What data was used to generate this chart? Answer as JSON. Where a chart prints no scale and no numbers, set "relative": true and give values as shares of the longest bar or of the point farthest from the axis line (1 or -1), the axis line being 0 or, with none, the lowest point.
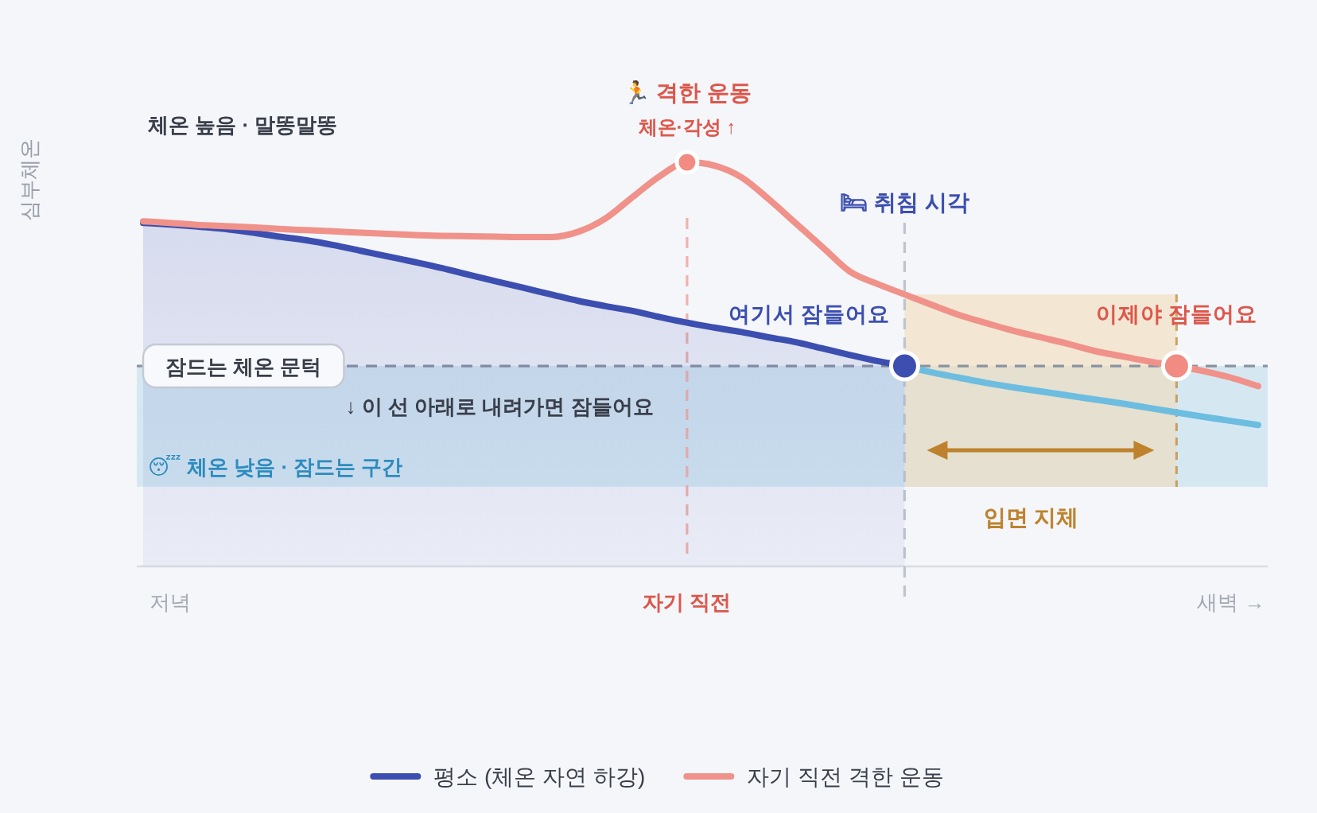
{
  "chart_data": {
    "type": "line",
    "relative": true,
    "ylabel": "심부체온",
    "categories": [
      null,
      "저녁",
      null,
      null,
      null,
      null,
      null,
      null,
      null,
      null,
      null,
      null,
      null,
      null,
      null,
      null,
      null,
      null,
      null,
      null,
      "자기 직전",
      null,
      null,
      null,
      null,
      null,
      null,
      null,
      null,
      null,
      null,
      null,
      null,
      null,
      null,
      null,
      null,
      null,
      null,
      null,
      "새벽 →",
      null
    ],
    "series": [
      {
        "name": "평소 (체온 자연 하강)",
        "type": "area",
        "color": "#3c4fb0",
        "values": [
          0.85,
          0.846,
          0.841,
          0.835,
          0.826,
          0.816,
          0.807,
          0.795,
          0.781,
          0.767,
          0.753,
          0.738,
          0.721,
          0.705,
          0.689,
          0.673,
          0.657,
          0.644,
          0.632,
          0.617,
          0.603,
          0.591,
          0.58,
          0.567,
          0.555,
          0.539,
          0.523,
          0.508,
          0.496,
          null,
          null,
          null,
          null,
          null,
          null,
          null,
          null,
          null,
          null,
          null,
          null,
          null
        ]
      },
      {
        "color": "#6cbde0",
        "values": [
          null,
          null,
          null,
          null,
          null,
          null,
          null,
          null,
          null,
          null,
          null,
          null,
          null,
          null,
          null,
          null,
          null,
          null,
          null,
          null,
          null,
          null,
          null,
          null,
          null,
          null,
          null,
          null,
          0.496,
          0.48,
          0.467,
          0.454,
          0.443,
          0.433,
          0.423,
          0.413,
          0.403,
          0.392,
          0.381,
          0.37,
          0.36,
          0.35
        ]
      },
      {
        "name": "자기 직전 격한 운동",
        "color": "#f0928a",
        "values": [
          0.854,
          0.85,
          0.845,
          0.842,
          0.839,
          0.835,
          0.832,
          0.829,
          0.826,
          0.823,
          0.82,
          0.818,
          0.817,
          0.816,
          0.815,
          0.815,
          0.828,
          0.861,
          0.914,
          0.966,
          1.0,
          0.992,
          0.963,
          0.909,
          0.849,
          0.789,
          0.729,
          0.699,
          0.673,
          0.647,
          0.622,
          0.602,
          0.583,
          0.567,
          0.551,
          0.533,
          0.52,
          0.507,
          0.496,
          0.483,
          0.467,
          0.446
        ]
      },
      {
        "type": "scatter",
        "marker": "circle",
        "color": "#3c4fb0",
        "values": [
          null,
          null,
          null,
          null,
          null,
          null,
          null,
          null,
          null,
          null,
          null,
          null,
          null,
          null,
          null,
          null,
          null,
          null,
          null,
          null,
          null,
          null,
          null,
          null,
          null,
          null,
          null,
          null,
          0.496,
          null,
          null,
          null,
          null,
          null,
          null,
          null,
          null,
          null,
          null,
          null,
          null,
          null
        ]
      },
      {
        "type": "scatter",
        "marker": "circle",
        "color": "#f28b82",
        "values": [
          null,
          null,
          null,
          null,
          null,
          null,
          null,
          null,
          null,
          null,
          null,
          null,
          null,
          null,
          null,
          null,
          null,
          null,
          null,
          null,
          1.0,
          null,
          null,
          null,
          null,
          null,
          null,
          null,
          null,
          null,
          null,
          null,
          null,
          null,
          null,
          null,
          null,
          null,
          0.496,
          null,
          null,
          null
        ]
      }
    ],
    "ref_lines": [
      {
        "axis": "y",
        "value": 0.496,
        "label": "잠드는 체온 문턱",
        "color": "#8b93a1",
        "line_style": "dashed"
      },
      {
        "axis": "x",
        "value": "자기 직전",
        "color": "#f3b2ac",
        "line_style": "dashed"
      }
    ],
    "bands": [
      {
        "axis": "y",
        "from": 0.197,
        "to": 0.496,
        "label": "😴 체온 낮음 · 잠드는 구간",
        "color": "#d5e8f2"
      }
    ],
    "annotations": [
      "체온 높음 · 말똥말똥",
      {
        "text": "🏃 격한 운동",
        "y": 1.0
      },
      {
        "text": "체온·각성 ↑",
        "y": 1.0
      },
      "🛏 취침 시각",
      {
        "text": "여기서 잠들어요",
        "y": 0.496
      },
      {
        "text": "이제야 잠들어요",
        "y": 0.496
      },
      "↓ 이 선 아래로 내려가면 잠들어요",
      "입면 지체"
    ],
    "legend": "bottom"
  }
}
